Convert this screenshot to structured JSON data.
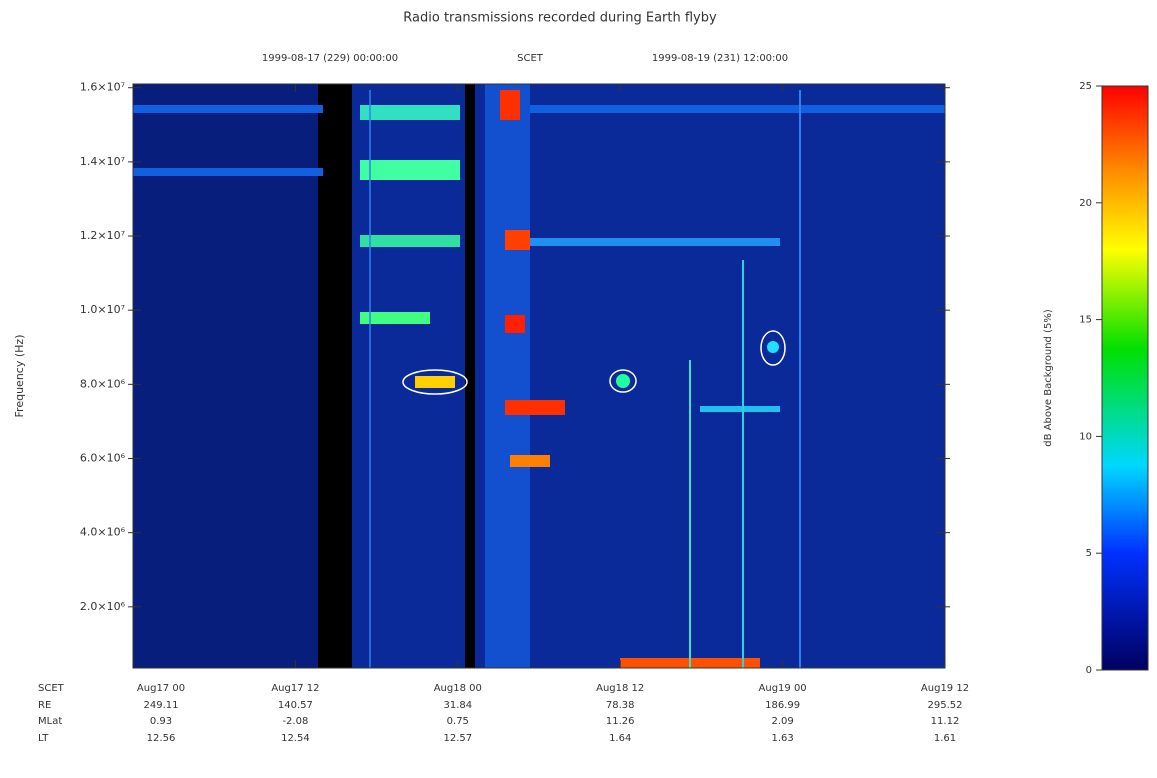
{
  "chart_data": {
    "type": "spectrogram",
    "title": "Radio transmissions recorded during Earth flyby",
    "top_labels": [
      "1999-08-17 (229) 00:00:00",
      "SCET",
      "1999-08-19 (231) 12:00:00"
    ],
    "ylabel": "Frequency (Hz)",
    "ylim": [
      350000,
      16100000
    ],
    "yticks": [
      {
        "value": 2000000,
        "label": "2.0×10⁶"
      },
      {
        "value": 4000000,
        "label": "4.0×10⁶"
      },
      {
        "value": 6000000,
        "label": "6.0×10⁶"
      },
      {
        "value": 8000000,
        "label": "8.0×10⁶"
      },
      {
        "value": 10000000,
        "label": "1.0×10⁷"
      },
      {
        "value": 12000000,
        "label": "1.2×10⁷"
      },
      {
        "value": 14000000,
        "label": "1.4×10⁷"
      },
      {
        "value": 16000000,
        "label": "1.6×10⁷"
      }
    ],
    "categories": [
      "Aug17 00",
      "Aug17 12",
      "Aug18 00",
      "Aug18 12",
      "Aug19 00",
      "Aug19 12"
    ],
    "ephemeris": [
      {
        "label": "SCET"
      },
      {
        "label": "RE",
        "values": [
          249.11,
          140.57,
          31.84,
          78.38,
          186.99,
          295.52
        ]
      },
      {
        "label": "MLat",
        "values": [
          0.93,
          -2.08,
          0.75,
          11.26,
          2.09,
          11.12
        ]
      },
      {
        "label": "LT",
        "values": [
          12.56,
          12.54,
          12.57,
          1.64,
          1.63,
          1.61
        ]
      }
    ],
    "colorbar": {
      "label": "dB Above Background (5%)",
      "lim": [
        0,
        25
      ],
      "ticks": [
        0,
        5,
        10,
        15,
        20,
        25
      ]
    }
  }
}
